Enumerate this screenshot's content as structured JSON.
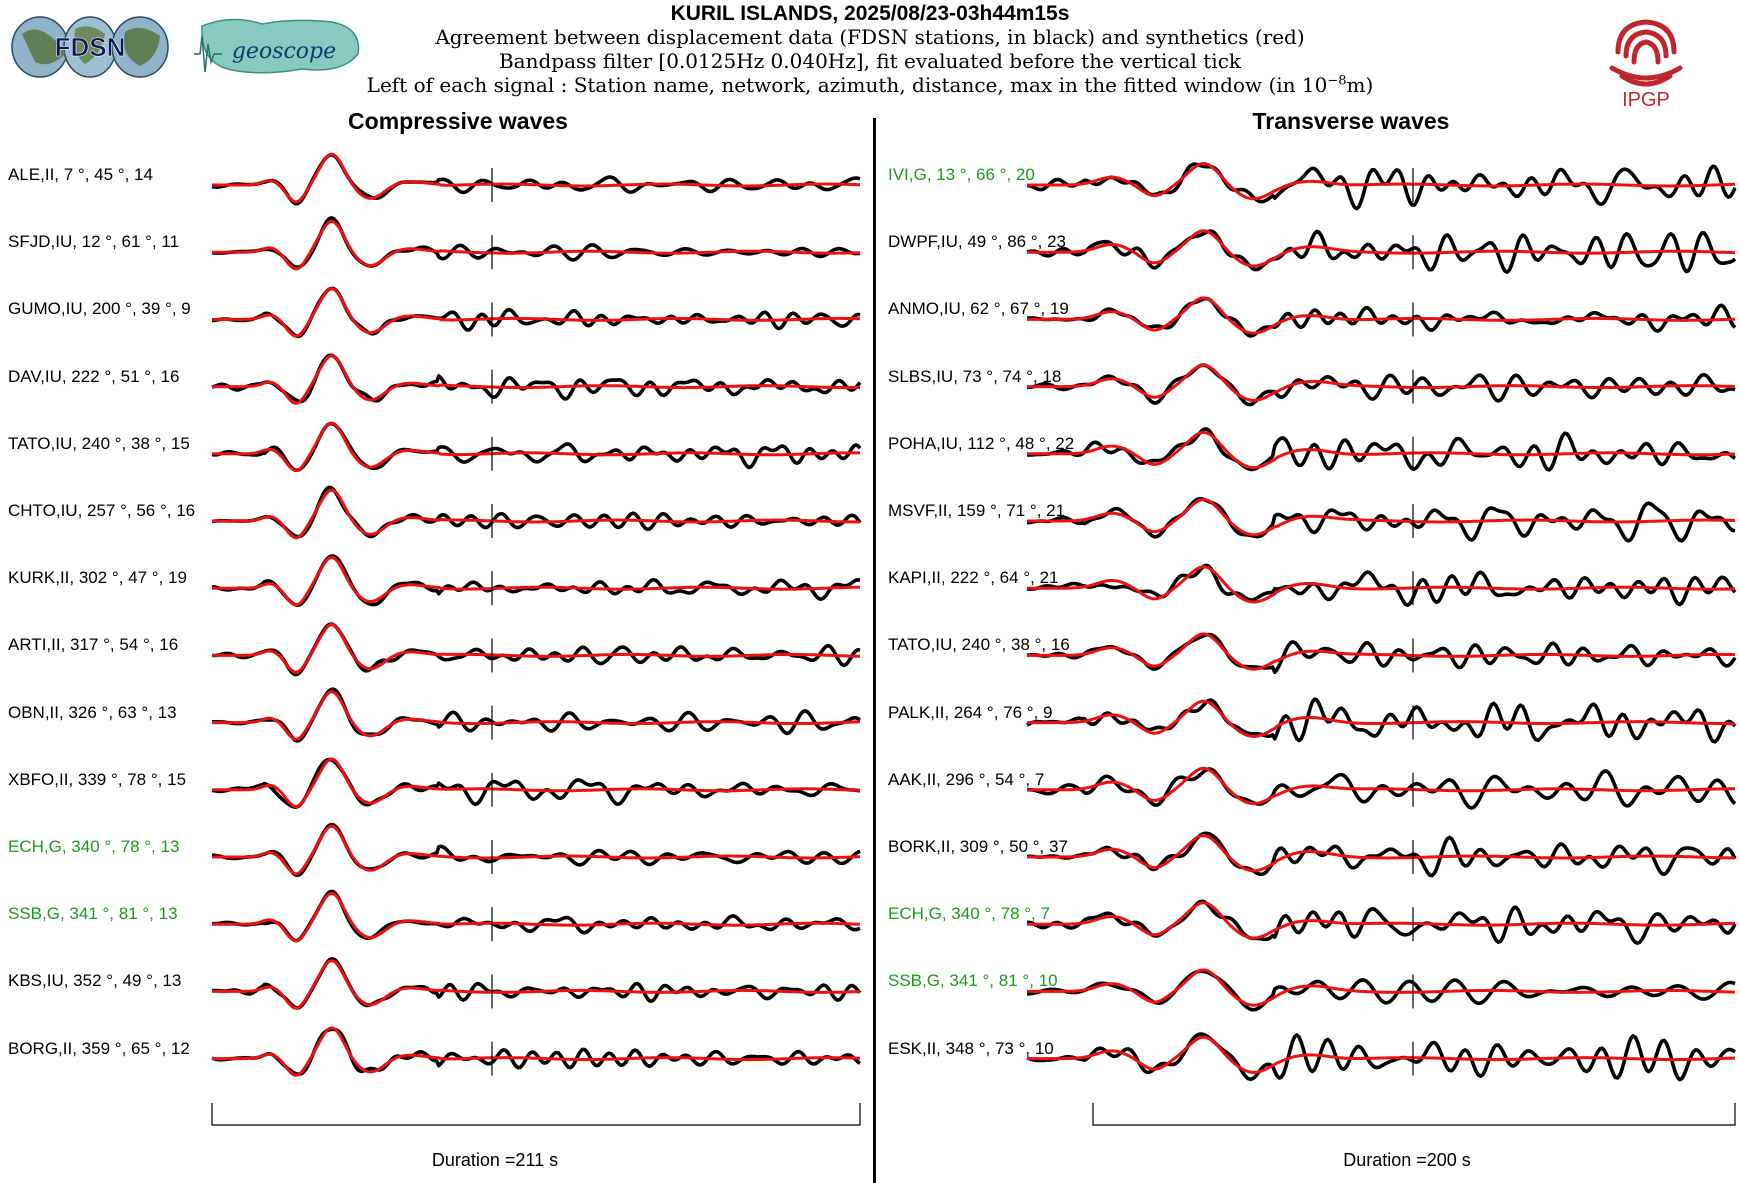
{
  "header": {
    "title": "KURIL ISLANDS, 2025/08/23-03h44m15s",
    "line1": "Agreement between displacement data (FDSN stations, in black) and synthetics (red)",
    "line2": "Bandpass filter [0.0125Hz 0.040Hz], fit evaluated before the vertical tick",
    "line3_prefix": "Left of each signal : Station name, network, azimuth, distance, max in the fitted window (in 10",
    "line3_exp": "−8",
    "line3_suffix": "m)"
  },
  "logos": {
    "fdsn": "FDSN",
    "geoscope": "geoscope",
    "ipgp": "IPGP"
  },
  "colors": {
    "data": "#000000",
    "synthetic": "#ee1111",
    "highlight_label": "#1a9b1a",
    "ipgp": "#c0272d"
  },
  "chart_data": [
    {
      "type": "line",
      "title": "Compressive waves",
      "duration_label": "Duration =211 s",
      "series": [
        {
          "label": "ALE,II, 7 °, 45 °, 14",
          "highlight": false
        },
        {
          "label": "SFJD,IU, 12 °, 61 °, 11",
          "highlight": false
        },
        {
          "label": "GUMO,IU, 200 °, 39 °, 9",
          "highlight": false
        },
        {
          "label": "DAV,IU, 222 °, 51 °, 16",
          "highlight": false
        },
        {
          "label": "TATO,IU, 240 °, 38 °, 15",
          "highlight": false
        },
        {
          "label": "CHTO,IU, 257 °, 56 °, 16",
          "highlight": false
        },
        {
          "label": "KURK,II, 302 °, 47 °, 19",
          "highlight": false
        },
        {
          "label": "ARTI,II, 317 °, 54 °, 16",
          "highlight": false
        },
        {
          "label": "OBN,II, 326 °, 63 °, 13",
          "highlight": false
        },
        {
          "label": "XBFO,II, 339 °, 78 °, 15",
          "highlight": false
        },
        {
          "label": "ECH,G, 340 °, 78 °, 13",
          "highlight": true
        },
        {
          "label": "SSB,G, 341 °, 81 °, 13",
          "highlight": true
        },
        {
          "label": "KBS,IU, 352 °, 49 °, 13",
          "highlight": false
        },
        {
          "label": "BORG,II, 359 °, 65 °, 12",
          "highlight": false
        }
      ]
    },
    {
      "type": "line",
      "title": "Transverse waves",
      "duration_label": "Duration =200 s",
      "series": [
        {
          "label": "IVI,G, 13 °, 66 °, 20",
          "highlight": true
        },
        {
          "label": "DWPF,IU, 49 °, 86 °, 23",
          "highlight": false
        },
        {
          "label": "ANMO,IU, 62 °, 67 °, 19",
          "highlight": false
        },
        {
          "label": "SLBS,IU, 73 °, 74 °, 18",
          "highlight": false
        },
        {
          "label": "POHA,IU, 112 °, 48 °, 22",
          "highlight": false
        },
        {
          "label": "MSVF,II, 159 °, 71 °, 21",
          "highlight": false
        },
        {
          "label": "KAPI,II, 222 °, 64 °, 21",
          "highlight": false
        },
        {
          "label": "TATO,IU, 240 °, 38 °, 16",
          "highlight": false
        },
        {
          "label": "PALK,II, 264 °, 76 °, 9",
          "highlight": false
        },
        {
          "label": "AAK,II, 296 °, 54 °, 7",
          "highlight": false
        },
        {
          "label": "BORK,II, 309 °, 50 °, 37",
          "highlight": false
        },
        {
          "label": "ECH,G, 340 °, 78 °, 7",
          "highlight": true
        },
        {
          "label": "SSB,G, 341 °, 81 °, 10",
          "highlight": true
        },
        {
          "label": "ESK,II, 348 °, 73 °, 10",
          "highlight": false
        }
      ]
    }
  ]
}
